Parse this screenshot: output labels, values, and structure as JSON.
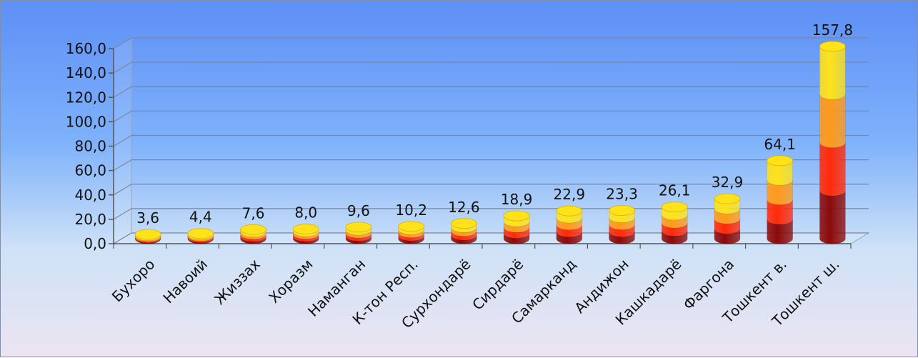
{
  "chart_data": {
    "type": "bar",
    "style": "3d-stacked-cylinder",
    "title": "",
    "xlabel": "",
    "ylabel": "",
    "categories": [
      "Бухоро",
      "Навоий",
      "Жиззах",
      "Хоразм",
      "Наманган",
      "К-тон Респ.",
      "Сурхондарё",
      "Сирдарё",
      "Самарканд",
      "Андижон",
      "Кашкадарё",
      "Фаргона",
      "Тошкент в.",
      "Тошкент ш."
    ],
    "values": [
      3.6,
      4.4,
      7.6,
      8.0,
      9.6,
      10.2,
      12.6,
      18.9,
      22.9,
      23.3,
      26.1,
      32.9,
      64.1,
      157.8
    ],
    "value_labels": [
      "3,6",
      "4,4",
      "7,6",
      "8,0",
      "9,6",
      "10,2",
      "12,6",
      "18,9",
      "22,9",
      "23,3",
      "26,1",
      "32,9",
      "64,1",
      "157,8"
    ],
    "yticks": [
      "0,0",
      "20,0",
      "40,0",
      "60,0",
      "80,0",
      "100,0",
      "120,0",
      "140,0",
      "160,0"
    ],
    "ylim": [
      0,
      160
    ],
    "grid": true,
    "legend": "none",
    "segment_colors": [
      "#8b0a0a",
      "#ff2a0a",
      "#ff9a1a",
      "#ffe21a"
    ]
  }
}
